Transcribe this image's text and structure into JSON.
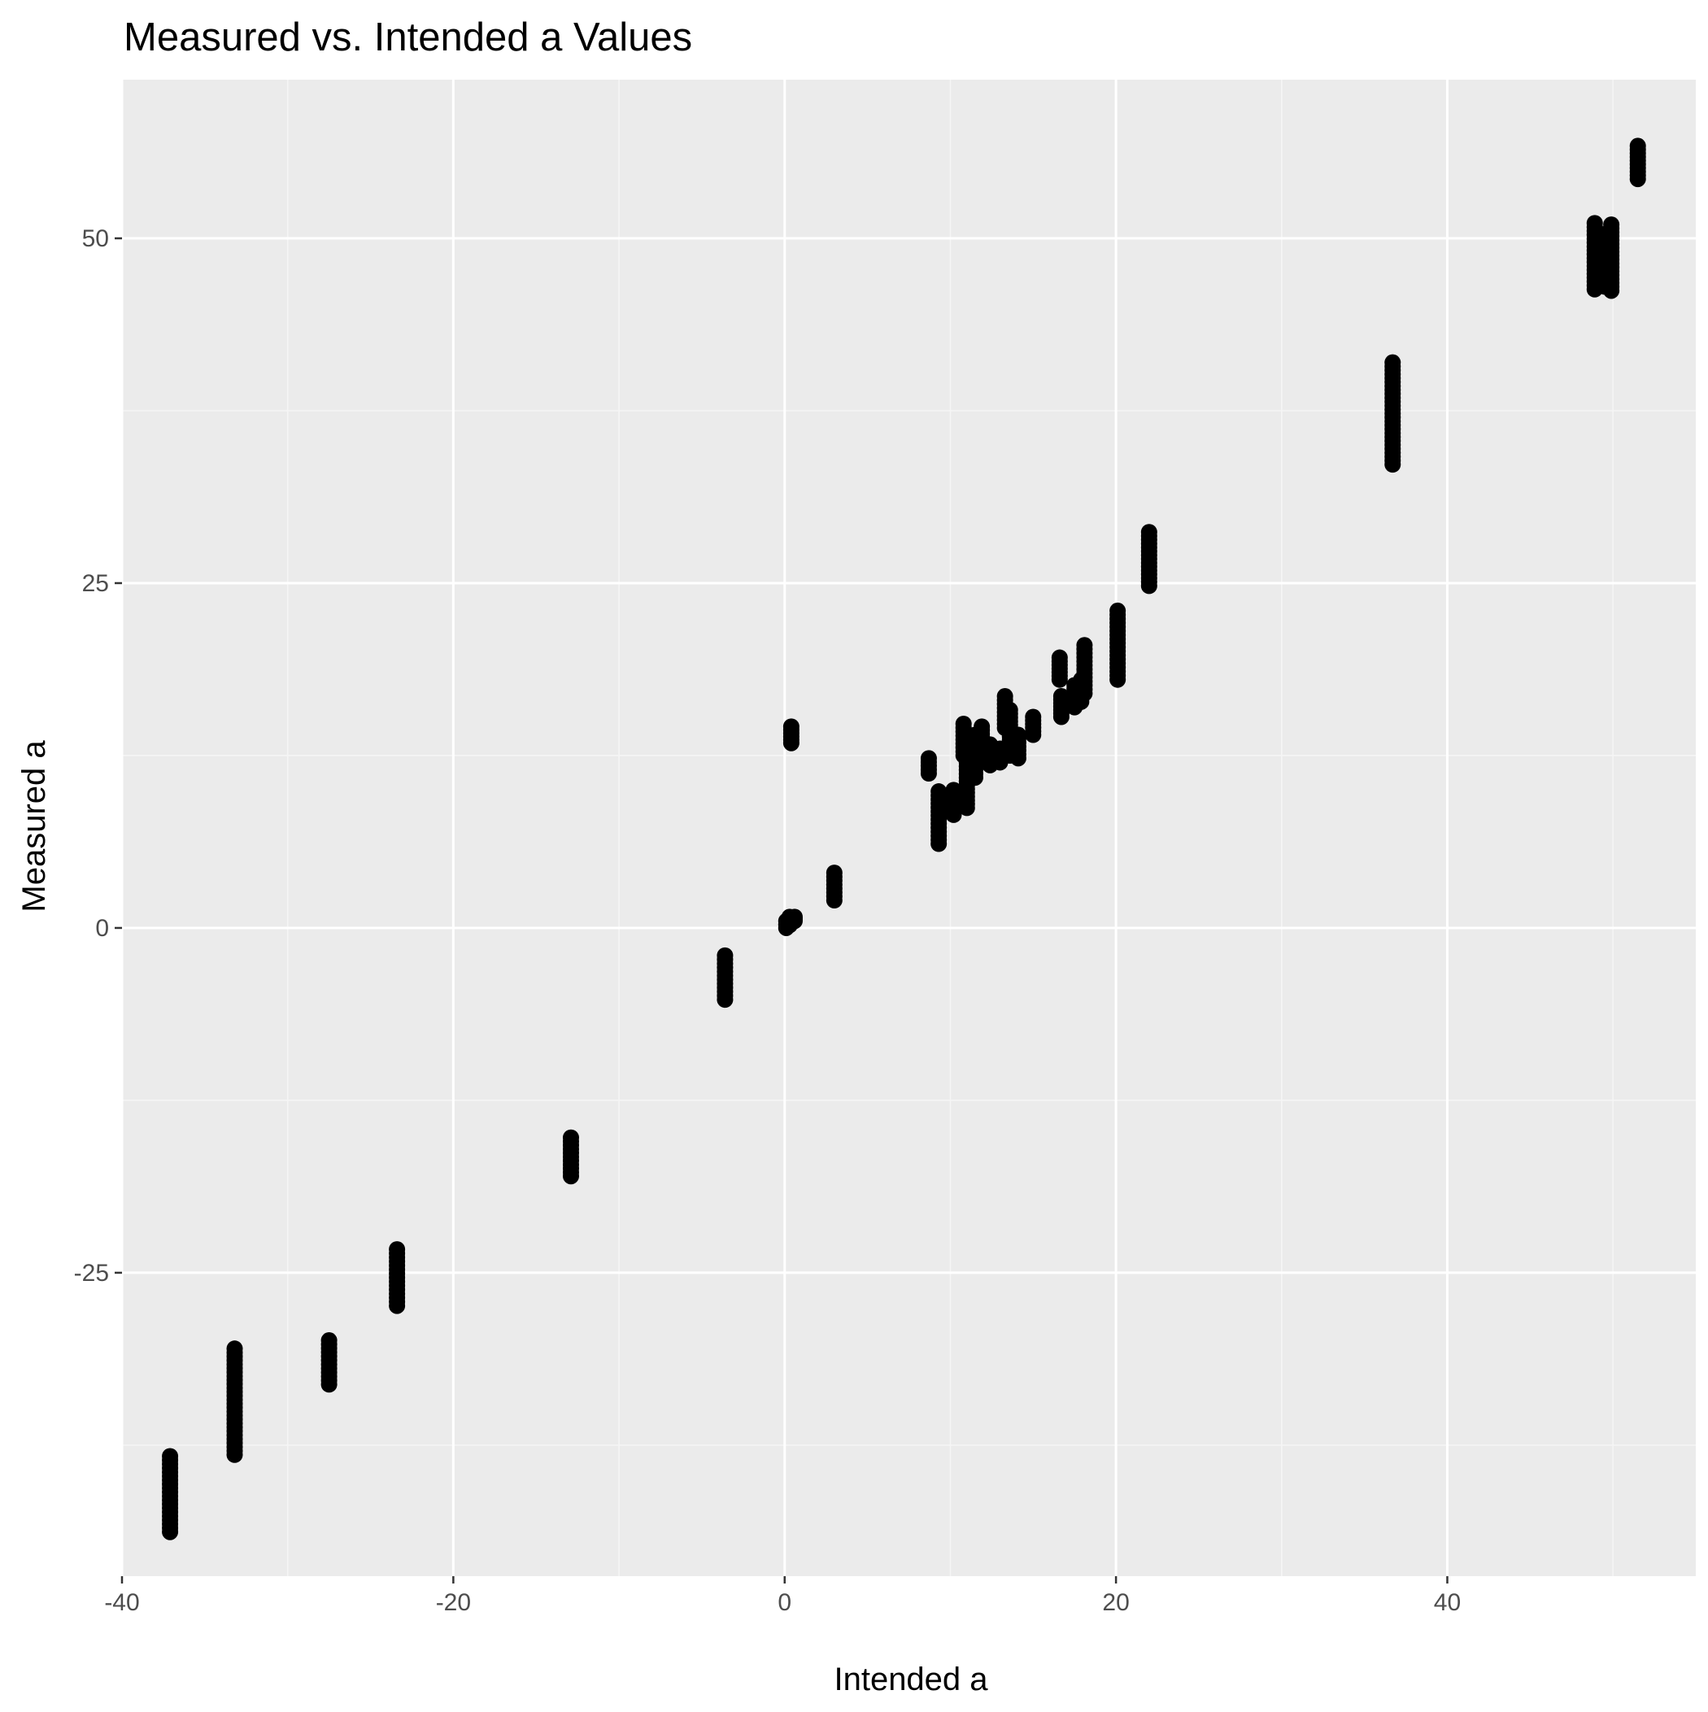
{
  "chart_data": {
    "type": "scatter",
    "title": "Measured vs. Intended a Values",
    "xlabel": "Intended a",
    "ylabel": "Measured a",
    "xlim": [
      -40,
      55
    ],
    "ylim": [
      -47,
      61.5
    ],
    "x_ticks": [
      -40,
      -20,
      0,
      20,
      40
    ],
    "y_ticks": [
      -25,
      0,
      25,
      50
    ],
    "x_tick_labels": [
      "-40",
      "-20",
      "0",
      "20",
      "40"
    ],
    "y_tick_labels": [
      "-25",
      "0",
      "25",
      "50"
    ],
    "grid": true,
    "legend": "none",
    "colors": {
      "panel_background": "#ebebeb",
      "grid_major": "#ffffff",
      "grid_minor": "#f5f5f5",
      "point": "#000000",
      "tick_label": "#4d4d4d",
      "text": "#000000"
    },
    "groups": [
      {
        "x": -37.1,
        "y_min": -43.8,
        "y_max": -38.3
      },
      {
        "x": -33.2,
        "y_min": -38.2,
        "y_max": -30.5
      },
      {
        "x": -27.5,
        "y_min": -33.1,
        "y_max": -29.9
      },
      {
        "x": -23.4,
        "y_min": -27.4,
        "y_max": -23.3
      },
      {
        "x": -12.9,
        "y_min": -18.0,
        "y_max": -15.2
      },
      {
        "x": -3.6,
        "y_min": -5.2,
        "y_max": -2.0
      },
      {
        "x": 0.1,
        "y_min": 0.0,
        "y_max": 0.5
      },
      {
        "x": 0.3,
        "y_min": 0.2,
        "y_max": 0.8
      },
      {
        "x": 0.6,
        "y_min": 0.5,
        "y_max": 0.8
      },
      {
        "x": 0.4,
        "y_min": 13.4,
        "y_max": 14.6
      },
      {
        "x": 3.0,
        "y_min": 2.0,
        "y_max": 4.0
      },
      {
        "x": 8.7,
        "y_min": 11.2,
        "y_max": 12.3
      },
      {
        "x": 9.3,
        "y_min": 6.1,
        "y_max": 9.9
      },
      {
        "x": 10.2,
        "y_min": 8.2,
        "y_max": 10.0
      },
      {
        "x": 10.8,
        "y_min": 12.5,
        "y_max": 14.8
      },
      {
        "x": 11.0,
        "y_min": 8.7,
        "y_max": 12.0
      },
      {
        "x": 11.5,
        "y_min": 10.9,
        "y_max": 14.0
      },
      {
        "x": 11.9,
        "y_min": 12.2,
        "y_max": 14.6
      },
      {
        "x": 12.4,
        "y_min": 11.8,
        "y_max": 13.3
      },
      {
        "x": 13.0,
        "y_min": 12.0,
        "y_max": 13.0
      },
      {
        "x": 13.3,
        "y_min": 14.5,
        "y_max": 16.8
      },
      {
        "x": 13.6,
        "y_min": 12.5,
        "y_max": 15.8
      },
      {
        "x": 14.1,
        "y_min": 12.3,
        "y_max": 14.0
      },
      {
        "x": 15.0,
        "y_min": 14.0,
        "y_max": 15.3
      },
      {
        "x": 16.6,
        "y_min": 18.0,
        "y_max": 19.6
      },
      {
        "x": 16.7,
        "y_min": 15.3,
        "y_max": 16.8
      },
      {
        "x": 17.5,
        "y_min": 16.0,
        "y_max": 17.6
      },
      {
        "x": 17.9,
        "y_min": 16.4,
        "y_max": 18.0
      },
      {
        "x": 18.1,
        "y_min": 17.0,
        "y_max": 20.5
      },
      {
        "x": 20.1,
        "y_min": 18.0,
        "y_max": 23.0
      },
      {
        "x": 22.0,
        "y_min": 24.8,
        "y_max": 28.7
      },
      {
        "x": 36.7,
        "y_min": 33.6,
        "y_max": 41.0
      },
      {
        "x": 48.9,
        "y_min": 46.3,
        "y_max": 51.1
      },
      {
        "x": 49.5,
        "y_min": 46.5,
        "y_max": 50.3
      },
      {
        "x": 49.9,
        "y_min": 46.2,
        "y_max": 51.0
      },
      {
        "x": 51.5,
        "y_min": 54.3,
        "y_max": 56.7
      }
    ]
  }
}
